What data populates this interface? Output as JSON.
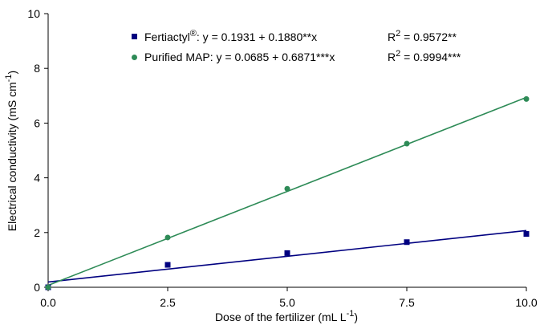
{
  "chart_data": {
    "type": "scatter",
    "xlabel": {
      "main": "Dose of the fertilizer (mL L",
      "sup": "-1",
      "end": ")"
    },
    "ylabel": {
      "main": "Electrical conductivity (mS cm",
      "sup": "-1",
      "end": ")"
    },
    "xlim": [
      0,
      10
    ],
    "ylim": [
      0,
      10
    ],
    "x_ticks": [
      "0.0",
      "2.5",
      "5.0",
      "7.5",
      "10.0"
    ],
    "y_ticks": [
      "0",
      "2",
      "4",
      "6",
      "8",
      "10"
    ],
    "grid": false,
    "legend_position": "top",
    "series": [
      {
        "name": "Fertiactyl",
        "name_sup": "®",
        "equation": ": y = 0.1931 + 0.1880**x",
        "r2_label": "R",
        "r2_sup": "2",
        "r2_value": " = 0.9572**",
        "color": "#000080",
        "marker": "square",
        "x": [
          0,
          2.5,
          5,
          7.5,
          10
        ],
        "y": [
          0.0,
          0.82,
          1.25,
          1.65,
          1.95
        ],
        "intercept": 0.1931,
        "slope": 0.188
      },
      {
        "name": "Purified MAP",
        "equation": ": y = 0.0685 + 0.6871***x",
        "r2_label": "R",
        "r2_sup": "2",
        "r2_value": " = 0.9994***",
        "color": "#2e8b57",
        "marker": "circle",
        "x": [
          0,
          2.5,
          5,
          7.5,
          10
        ],
        "y": [
          0.0,
          1.82,
          3.6,
          5.25,
          6.88
        ],
        "intercept": 0.0685,
        "slope": 0.6871
      }
    ]
  }
}
